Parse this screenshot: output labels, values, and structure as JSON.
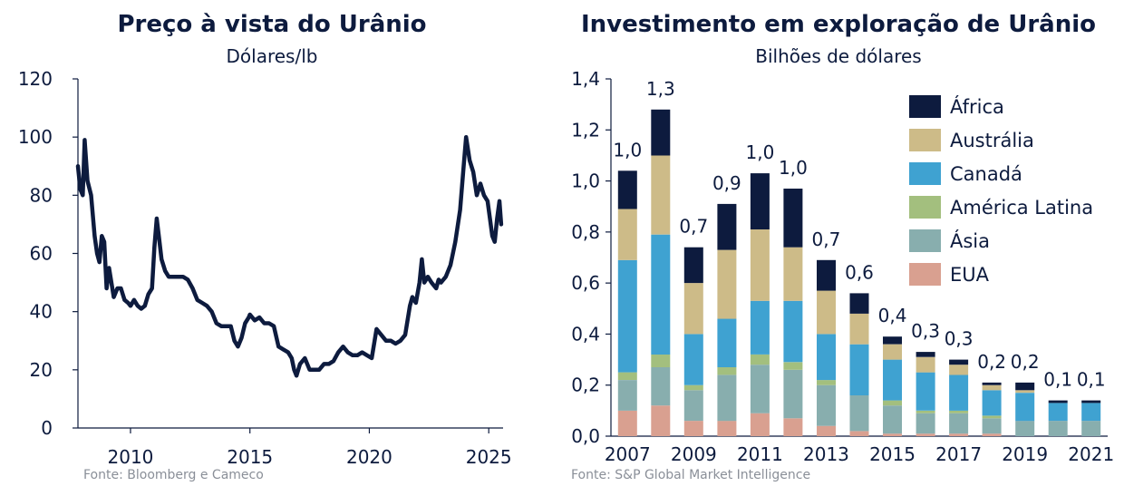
{
  "charts": [
    {
      "title": "Preço à vista do Urânio",
      "subtitle": "Dólares/lb",
      "source": "Fonte: Bloomberg e Cameco"
    },
    {
      "title": "Investimento em exploração de Urânio",
      "subtitle": "Bilhões de dólares",
      "source": "Fonte: S&P Global Market Intelligence"
    }
  ],
  "colors": {
    "line": "#0d1b3e",
    "Africa": "#0d1b3e",
    "Australia": "#cdbb88",
    "Canada": "#3fa2d1",
    "AmericaLatina": "#a3bf7e",
    "Asia": "#88aeae",
    "EUA": "#d9a090"
  },
  "chart_data": [
    {
      "type": "line",
      "title": "Preço à vista do Urânio",
      "ylabel": "Dólares/lb",
      "xlim": [
        2007.8,
        2025.6
      ],
      "ylim": [
        0,
        120
      ],
      "x_ticks": [
        2010,
        2015,
        2020,
        2025
      ],
      "y_ticks": [
        0,
        20,
        40,
        60,
        80,
        100,
        120
      ],
      "grid": false,
      "series": [
        {
          "values": [
            [
              2007.8,
              90
            ],
            [
              2007.9,
              82
            ],
            [
              2008.0,
              80
            ],
            [
              2008.08,
              99
            ],
            [
              2008.2,
              85
            ],
            [
              2008.35,
              80
            ],
            [
              2008.5,
              66
            ],
            [
              2008.6,
              60
            ],
            [
              2008.7,
              57
            ],
            [
              2008.8,
              66
            ],
            [
              2008.9,
              64
            ],
            [
              2009.0,
              48
            ],
            [
              2009.1,
              55
            ],
            [
              2009.2,
              50
            ],
            [
              2009.3,
              45
            ],
            [
              2009.45,
              48
            ],
            [
              2009.6,
              48
            ],
            [
              2009.75,
              44
            ],
            [
              2009.9,
              43
            ],
            [
              2010.0,
              42
            ],
            [
              2010.15,
              44
            ],
            [
              2010.3,
              42
            ],
            [
              2010.45,
              41
            ],
            [
              2010.6,
              42
            ],
            [
              2010.75,
              46
            ],
            [
              2010.9,
              48
            ],
            [
              2011.0,
              62
            ],
            [
              2011.1,
              72
            ],
            [
              2011.2,
              65
            ],
            [
              2011.3,
              58
            ],
            [
              2011.45,
              54
            ],
            [
              2011.6,
              52
            ],
            [
              2011.8,
              52
            ],
            [
              2012.0,
              52
            ],
            [
              2012.2,
              52
            ],
            [
              2012.4,
              51
            ],
            [
              2012.6,
              48
            ],
            [
              2012.8,
              44
            ],
            [
              2013.0,
              43
            ],
            [
              2013.2,
              42
            ],
            [
              2013.4,
              40
            ],
            [
              2013.6,
              36
            ],
            [
              2013.8,
              35
            ],
            [
              2014.0,
              35
            ],
            [
              2014.2,
              35
            ],
            [
              2014.35,
              30
            ],
            [
              2014.5,
              28
            ],
            [
              2014.65,
              31
            ],
            [
              2014.8,
              36
            ],
            [
              2014.95,
              38
            ],
            [
              2015.0,
              39
            ],
            [
              2015.2,
              37
            ],
            [
              2015.4,
              38
            ],
            [
              2015.6,
              36
            ],
            [
              2015.8,
              36
            ],
            [
              2016.0,
              35
            ],
            [
              2016.2,
              28
            ],
            [
              2016.4,
              27
            ],
            [
              2016.6,
              26
            ],
            [
              2016.75,
              24
            ],
            [
              2016.85,
              20
            ],
            [
              2016.95,
              18
            ],
            [
              2017.1,
              22
            ],
            [
              2017.3,
              24
            ],
            [
              2017.5,
              20
            ],
            [
              2017.7,
              20
            ],
            [
              2017.9,
              20
            ],
            [
              2018.1,
              22
            ],
            [
              2018.3,
              22
            ],
            [
              2018.5,
              23
            ],
            [
              2018.7,
              26
            ],
            [
              2018.9,
              28
            ],
            [
              2019.1,
              26
            ],
            [
              2019.3,
              25
            ],
            [
              2019.5,
              25
            ],
            [
              2019.7,
              26
            ],
            [
              2019.9,
              25
            ],
            [
              2020.1,
              24
            ],
            [
              2020.3,
              34
            ],
            [
              2020.5,
              32
            ],
            [
              2020.7,
              30
            ],
            [
              2020.9,
              30
            ],
            [
              2021.1,
              29
            ],
            [
              2021.3,
              30
            ],
            [
              2021.5,
              32
            ],
            [
              2021.7,
              42
            ],
            [
              2021.8,
              45
            ],
            [
              2021.95,
              43
            ],
            [
              2022.1,
              50
            ],
            [
              2022.2,
              58
            ],
            [
              2022.3,
              50
            ],
            [
              2022.45,
              52
            ],
            [
              2022.6,
              50
            ],
            [
              2022.8,
              48
            ],
            [
              2022.9,
              51
            ],
            [
              2023.0,
              50
            ],
            [
              2023.2,
              52
            ],
            [
              2023.4,
              56
            ],
            [
              2023.6,
              64
            ],
            [
              2023.8,
              75
            ],
            [
              2023.95,
              90
            ],
            [
              2024.05,
              100
            ],
            [
              2024.2,
              92
            ],
            [
              2024.35,
              88
            ],
            [
              2024.5,
              80
            ],
            [
              2024.65,
              84
            ],
            [
              2024.8,
              80
            ],
            [
              2024.95,
              78
            ],
            [
              2025.05,
              72
            ],
            [
              2025.15,
              66
            ],
            [
              2025.25,
              64
            ],
            [
              2025.35,
              72
            ],
            [
              2025.45,
              78
            ],
            [
              2025.52,
              70
            ]
          ]
        }
      ]
    },
    {
      "type": "bar",
      "stacked": true,
      "title": "Investimento em exploração de Urânio",
      "ylabel": "Bilhões de dólares",
      "ylim": [
        0,
        1.4
      ],
      "y_ticks": [
        "0,0",
        "0,2",
        "0,4",
        "0,6",
        "0,8",
        "1,0",
        "1,2",
        "1,4"
      ],
      "x_tick_labels": [
        "2007",
        "2009",
        "2011",
        "2013",
        "2015",
        "2017",
        "2019",
        "2021"
      ],
      "legend_position": "top-right",
      "categories": [
        "2007",
        "2008",
        "2009",
        "2010",
        "2011",
        "2012",
        "2013",
        "2014",
        "2015",
        "2016",
        "2017",
        "2018",
        "2019",
        "2020",
        "2021"
      ],
      "totals": [
        "1,0",
        "1,3",
        "0,7",
        "0,9",
        "1,0",
        "1,0",
        "0,7",
        "0,6",
        "0,4",
        "0,3",
        "0,3",
        "0,2",
        "0,2",
        "0,1",
        "0,1"
      ],
      "series": [
        {
          "name": "EUA",
          "color_key": "EUA",
          "values": [
            0.1,
            0.12,
            0.06,
            0.06,
            0.09,
            0.07,
            0.04,
            0.02,
            0.01,
            0.01,
            0.01,
            0.01,
            0.0,
            0.0,
            0.0
          ]
        },
        {
          "name": "Ásia",
          "color_key": "Asia",
          "values": [
            0.12,
            0.15,
            0.12,
            0.18,
            0.19,
            0.19,
            0.16,
            0.14,
            0.11,
            0.08,
            0.08,
            0.06,
            0.06,
            0.06,
            0.06
          ]
        },
        {
          "name": "América Latina",
          "color_key": "AmericaLatina",
          "values": [
            0.03,
            0.05,
            0.02,
            0.03,
            0.04,
            0.03,
            0.02,
            0.0,
            0.02,
            0.01,
            0.01,
            0.01,
            0.0,
            0.0,
            0.0
          ]
        },
        {
          "name": "Canadá",
          "color_key": "Canada",
          "values": [
            0.44,
            0.47,
            0.2,
            0.19,
            0.21,
            0.24,
            0.18,
            0.2,
            0.16,
            0.15,
            0.14,
            0.1,
            0.11,
            0.07,
            0.07
          ]
        },
        {
          "name": "Austrália",
          "color_key": "Australia",
          "values": [
            0.2,
            0.31,
            0.2,
            0.27,
            0.28,
            0.21,
            0.17,
            0.12,
            0.06,
            0.06,
            0.04,
            0.02,
            0.01,
            0.0,
            0.0
          ]
        },
        {
          "name": "África",
          "color_key": "Africa",
          "values": [
            0.15,
            0.18,
            0.14,
            0.18,
            0.22,
            0.23,
            0.12,
            0.08,
            0.03,
            0.02,
            0.02,
            0.01,
            0.03,
            0.01,
            0.01
          ]
        }
      ],
      "legend_order": [
        "África",
        "Austrália",
        "Canadá",
        "América Latina",
        "Ásia",
        "EUA"
      ]
    }
  ]
}
